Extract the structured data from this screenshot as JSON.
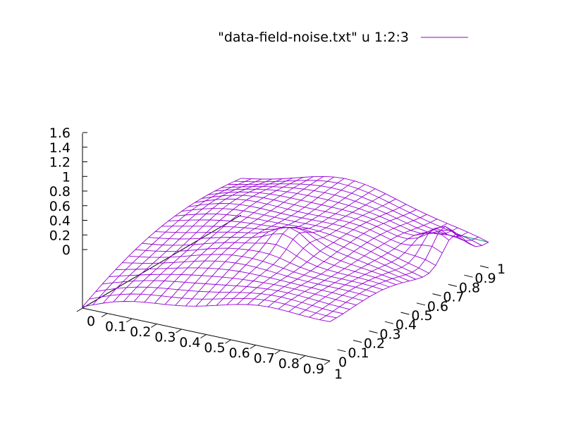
{
  "chart_data": {
    "type": "surface",
    "legend": {
      "label": "\"data-field-noise.txt\" u 1:2:3",
      "placement": "top-right"
    },
    "x_ticks": [
      "0",
      "0.1",
      "0.2",
      "0.3",
      "0.4",
      "0.5",
      "0.6",
      "0.7",
      "0.8",
      "0.9",
      "1"
    ],
    "y_ticks": [
      "0",
      "0.1",
      "0.2",
      "0.3",
      "0.4",
      "0.5",
      "0.6",
      "0.7",
      "0.8",
      "0.9",
      "1"
    ],
    "z_ticks": [
      "0",
      "0.2",
      "0.4",
      "0.6",
      "0.8",
      "1",
      "1.2",
      "1.4",
      "1.6"
    ],
    "xlim": [
      0,
      1
    ],
    "ylim": [
      0,
      1
    ],
    "zlim": [
      0,
      1.6
    ],
    "grid_points": 25,
    "colors": {
      "top_surface": "#9400d3",
      "under_surface": "#009e73",
      "axes": "#000000"
    }
  }
}
